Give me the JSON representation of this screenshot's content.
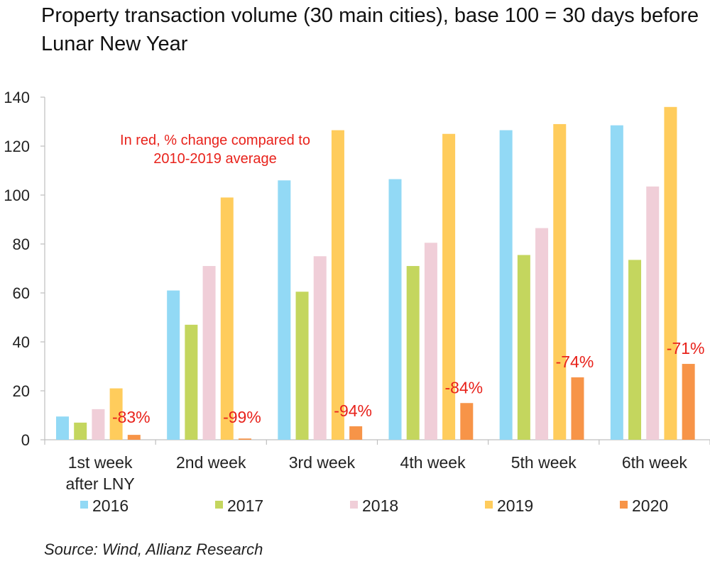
{
  "title": "Property transaction volume (30 main cities), base 100 = 30 days before Lunar New Year",
  "source": "Source: Wind, Allianz Research",
  "note_lines": [
    "In red, % change compared to",
    "2010-2019 average"
  ],
  "colors": {
    "2016": "#92D9F5",
    "2017": "#C4D65E",
    "2018": "#F0CED8",
    "2019": "#FFCC5C",
    "2020": "#F79448",
    "annotation": "#E8221B",
    "axis": "#BFBFBF"
  },
  "chart_data": {
    "type": "bar",
    "title": "Property transaction volume (30 main cities), base 100 = 30 days before Lunar New Year",
    "categories": [
      [
        "1st week",
        "after LNY"
      ],
      [
        "2nd week"
      ],
      [
        "3rd week"
      ],
      [
        "4th week"
      ],
      [
        "5th week"
      ],
      [
        "6th week"
      ]
    ],
    "series": [
      {
        "name": "2016",
        "values": [
          9.5,
          61,
          106,
          106.5,
          126.5,
          128.5
        ]
      },
      {
        "name": "2017",
        "values": [
          7,
          47,
          60.5,
          71,
          75.5,
          73.5
        ]
      },
      {
        "name": "2018",
        "values": [
          12.5,
          71,
          75,
          80.5,
          86.5,
          103.5
        ]
      },
      {
        "name": "2019",
        "values": [
          21,
          99,
          126.5,
          125,
          129,
          136
        ]
      },
      {
        "name": "2020",
        "values": [
          2,
          0.5,
          5.5,
          15,
          25.5,
          31
        ]
      }
    ],
    "annotations": [
      "-83%",
      "-99%",
      "-94%",
      "-84%",
      "-74%",
      "-71%"
    ],
    "yticks": [
      0,
      20,
      40,
      60,
      80,
      100,
      120,
      140
    ],
    "ylim": [
      0,
      140
    ],
    "grid": false,
    "legend_position": "bottom"
  }
}
